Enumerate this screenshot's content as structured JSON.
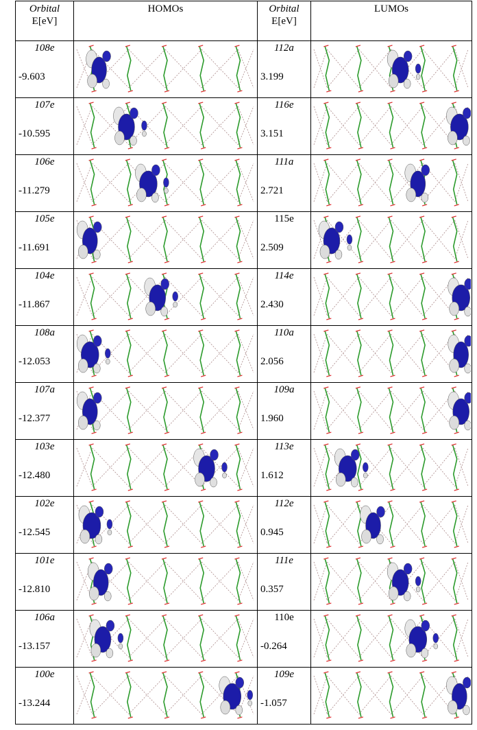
{
  "table": {
    "header": [
      "Orbital",
      "E[eV]",
      "HOMOs",
      "Orbital",
      "E[eV]",
      "LUMOs"
    ],
    "rows": [
      {
        "homo": {
          "label": "108e",
          "energy": "-9.603",
          "italic": true
        },
        "lumo": {
          "label": "112a",
          "energy": "3.199",
          "italic": true
        }
      },
      {
        "homo": {
          "label": "107e",
          "energy": "-10.595",
          "italic": true
        },
        "lumo": {
          "label": "116e",
          "energy": "3.151",
          "italic": true
        }
      },
      {
        "homo": {
          "label": "106e",
          "energy": "-11.279",
          "italic": true
        },
        "lumo": {
          "label": "111a",
          "energy": "2.721",
          "italic": true
        }
      },
      {
        "homo": {
          "label": "105e",
          "energy": "-11.691",
          "italic": true
        },
        "lumo": {
          "label": "115e",
          "energy": "2.509",
          "italic": false
        }
      },
      {
        "homo": {
          "label": "104e",
          "energy": "-11.867",
          "italic": true
        },
        "lumo": {
          "label": "114e",
          "energy": "2.430",
          "italic": true
        }
      },
      {
        "homo": {
          "label": "108a",
          "energy": "-12.053",
          "italic": true
        },
        "lumo": {
          "label": "110a",
          "energy": "2.056",
          "italic": true
        }
      },
      {
        "homo": {
          "label": "107a",
          "energy": "-12.377",
          "italic": true
        },
        "lumo": {
          "label": "109a",
          "energy": "1.960",
          "italic": true
        }
      },
      {
        "homo": {
          "label": "103e",
          "energy": "-12.480",
          "italic": true
        },
        "lumo": {
          "label": "113e",
          "energy": "1.612",
          "italic": true
        }
      },
      {
        "homo": {
          "label": "102e",
          "energy": "-12.545",
          "italic": true
        },
        "lumo": {
          "label": "112e",
          "energy": "0.945",
          "italic": true
        }
      },
      {
        "homo": {
          "label": "101e",
          "energy": "-12.810",
          "italic": true
        },
        "lumo": {
          "label": "111e",
          "energy": "0.357",
          "italic": true
        }
      },
      {
        "homo": {
          "label": "106a",
          "energy": "-13.157",
          "italic": true
        },
        "lumo": {
          "label": "110e",
          "energy": "-0.264",
          "italic": false
        }
      },
      {
        "homo": {
          "label": "100e",
          "energy": "-13.244",
          "italic": true
        },
        "lumo": {
          "label": "109e",
          "energy": "-1.057",
          "italic": true
        }
      }
    ]
  }
}
